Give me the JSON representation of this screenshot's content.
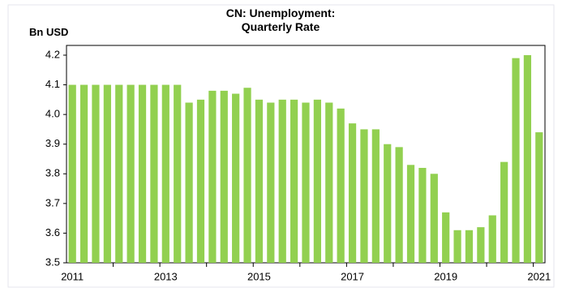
{
  "chart_data": {
    "type": "bar",
    "title": "CN: Unemployment: Quarterly Rate",
    "y_label": "Bn USD",
    "categories": [
      "2011",
      null,
      null,
      null,
      null,
      null,
      null,
      null,
      "2013",
      null,
      null,
      null,
      null,
      null,
      null,
      null,
      "2015",
      null,
      null,
      null,
      null,
      null,
      null,
      null,
      "2017",
      null,
      null,
      null,
      null,
      null,
      null,
      null,
      "2019",
      null,
      null,
      null,
      null,
      null,
      null,
      null,
      "2021"
    ],
    "values": [
      4.1,
      4.1,
      4.1,
      4.1,
      4.1,
      4.1,
      4.1,
      4.1,
      4.1,
      4.1,
      4.04,
      4.05,
      4.08,
      4.08,
      4.07,
      4.09,
      4.05,
      4.04,
      4.05,
      4.05,
      4.04,
      4.05,
      4.04,
      4.02,
      3.97,
      3.95,
      3.95,
      3.9,
      3.89,
      3.83,
      3.82,
      3.8,
      3.67,
      3.61,
      3.61,
      3.62,
      3.66,
      3.84,
      4.19,
      4.2,
      3.94
    ],
    "color": "#92d050",
    "ylim": [
      3.5,
      4.2
    ],
    "yticks": [
      3.5,
      3.6,
      3.7,
      3.8,
      3.9,
      {
        "value": 4,
        "label": "4.0"
      },
      4.1,
      4.2
    ],
    "grid": false
  }
}
